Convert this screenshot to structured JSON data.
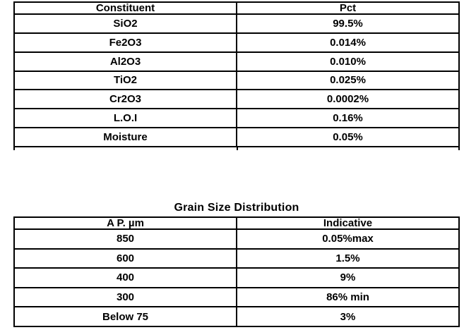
{
  "page": {
    "background_color": "#ffffff",
    "text_color": "#000000",
    "border_color": "#000000"
  },
  "composition_table": {
    "headers": [
      "Constituent",
      "Pct"
    ],
    "rows": [
      [
        "SiO2",
        "99.5%"
      ],
      [
        "Fe2O3",
        "0.014%"
      ],
      [
        "Al2O3",
        "0.010%"
      ],
      [
        "TiO2",
        "0.025%"
      ],
      [
        "Cr2O3",
        "0.0002%"
      ],
      [
        "L.O.I",
        "0.16%"
      ],
      [
        "Moisture",
        "0.05%"
      ]
    ]
  },
  "grain_size_table": {
    "title": "Grain Size Distribution",
    "headers": [
      "A P. µm",
      "Indicative"
    ],
    "rows": [
      [
        "850",
        "0.05%max"
      ],
      [
        "600",
        "1.5%"
      ],
      [
        "400",
        "9%"
      ],
      [
        "300",
        "86% min"
      ],
      [
        "Below 75",
        "3%"
      ]
    ]
  }
}
